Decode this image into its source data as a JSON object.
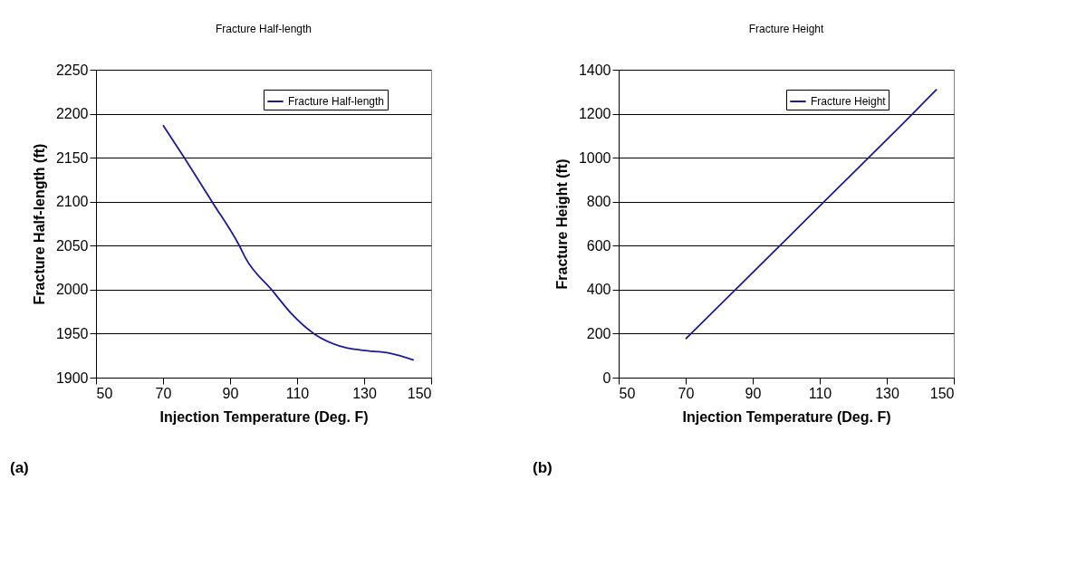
{
  "chart_data": [
    {
      "type": "line",
      "title": "Fracture Half-length",
      "xlabel": "Injection Temperature (Deg. F)",
      "ylabel": "Fracture Half-length (ft)",
      "series": [
        {
          "name": "Fracture Half-length",
          "color": "#1c1c8c",
          "x": [
            70,
            76,
            84.6,
            92.9,
            94.6,
            102.4,
            108,
            115.4,
            122.7,
            129.7,
            137.5,
            144.8
          ],
          "values": [
            2187,
            2152,
            2100,
            2049,
            2036,
            2000,
            1974,
            1949,
            1936,
            1931,
            1928,
            1920
          ]
        }
      ],
      "xlim": [
        50,
        150
      ],
      "xticks": [
        50,
        70,
        90,
        110,
        130,
        150
      ],
      "ylim": [
        1900,
        2250
      ],
      "yticks": [
        1900,
        1950,
        2000,
        2050,
        2100,
        2150,
        2200,
        2250
      ],
      "grid": "y",
      "legend": "top right",
      "annotations": [
        "(a)"
      ]
    },
    {
      "type": "line",
      "title": "Fracture Height",
      "xlabel": "Injection Temperature (Deg. F)",
      "ylabel": "Fracture Height (ft)",
      "series": [
        {
          "name": "Fracture Height",
          "color": "#1c1c8c",
          "x": [
            70,
            99.1,
            112.2,
            138,
            144.9
          ],
          "values": [
            176,
            615,
            814,
            1204,
            1311
          ]
        }
      ],
      "xlim": [
        50,
        150
      ],
      "xticks": [
        50,
        70,
        90,
        110,
        130,
        150
      ],
      "ylim": [
        0,
        1400
      ],
      "yticks": [
        0,
        200,
        400,
        600,
        800,
        1000,
        1200,
        1400
      ],
      "grid": "y",
      "legend": "top right",
      "annotations": [
        "(b)"
      ]
    }
  ]
}
